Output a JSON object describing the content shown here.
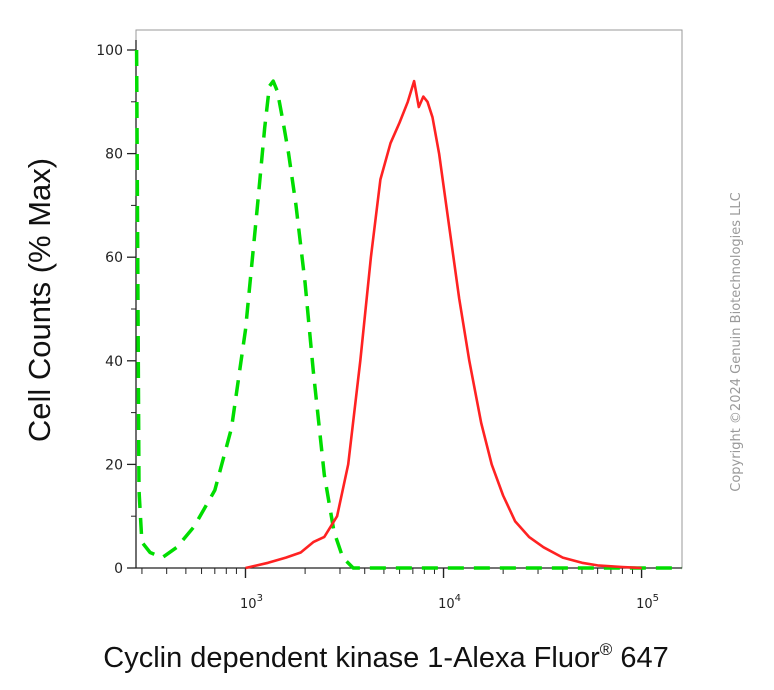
{
  "chart_data": {
    "type": "line",
    "title": "",
    "xlabel": "Cyclin dependent kinase 1-Alexa Fluor",
    "xlabel_superscript": "®",
    "xlabel_suffix": " 647",
    "ylabel": "Cell Counts (% Max)",
    "xscale": "log",
    "xlim": [
      280,
      160000
    ],
    "ylim": [
      0,
      100
    ],
    "grid": false,
    "legend": "none",
    "y_ticks": [
      {
        "value": 0,
        "label": "0"
      },
      {
        "value": 20,
        "label": "20"
      },
      {
        "value": 40,
        "label": "40"
      },
      {
        "value": 60,
        "label": "60"
      },
      {
        "value": 80,
        "label": "80"
      },
      {
        "value": 100,
        "label": "100"
      }
    ],
    "x_ticks": [
      {
        "value": 1000,
        "base": "10",
        "exp": "3"
      },
      {
        "value": 10000,
        "base": "10",
        "exp": "4"
      },
      {
        "value": 100000,
        "base": "10",
        "exp": "5"
      }
    ],
    "series": [
      {
        "color": "#00dd00",
        "style": "dashed",
        "x": [
          282,
          290,
          300,
          330,
          380,
          450,
          550,
          700,
          850,
          1000,
          1150,
          1250,
          1320,
          1380,
          1450,
          1550,
          1650,
          1800,
          2000,
          2200,
          2500,
          2800,
          3100,
          3500,
          5000,
          10000,
          20000,
          50000,
          100000,
          160000
        ],
        "y": [
          100,
          15,
          5,
          3,
          2,
          4,
          8,
          15,
          27,
          46,
          70,
          85,
          93,
          94,
          92,
          86,
          80,
          70,
          55,
          38,
          18,
          7,
          2,
          0,
          0,
          0,
          0,
          0,
          0,
          0
        ]
      },
      {
        "color": "#ff2222",
        "style": "solid",
        "x": [
          1000,
          1300,
          1600,
          1900,
          2200,
          2500,
          2900,
          3300,
          3800,
          4300,
          4800,
          5400,
          6000,
          6600,
          7100,
          7500,
          7900,
          8300,
          8800,
          9500,
          10500,
          12000,
          13500,
          15500,
          17500,
          20000,
          23000,
          27000,
          32000,
          40000,
          50000,
          60000,
          80000,
          100000
        ],
        "y": [
          0,
          1,
          2,
          3,
          5,
          6,
          10,
          20,
          40,
          60,
          75,
          82,
          86,
          90,
          94,
          89,
          91,
          90,
          87,
          80,
          68,
          52,
          40,
          28,
          20,
          14,
          9,
          6,
          4,
          2,
          1,
          0.5,
          0.2,
          0
        ]
      }
    ]
  },
  "watermark": "Copyright ©2024 Genuin Biotechnologies LLC"
}
